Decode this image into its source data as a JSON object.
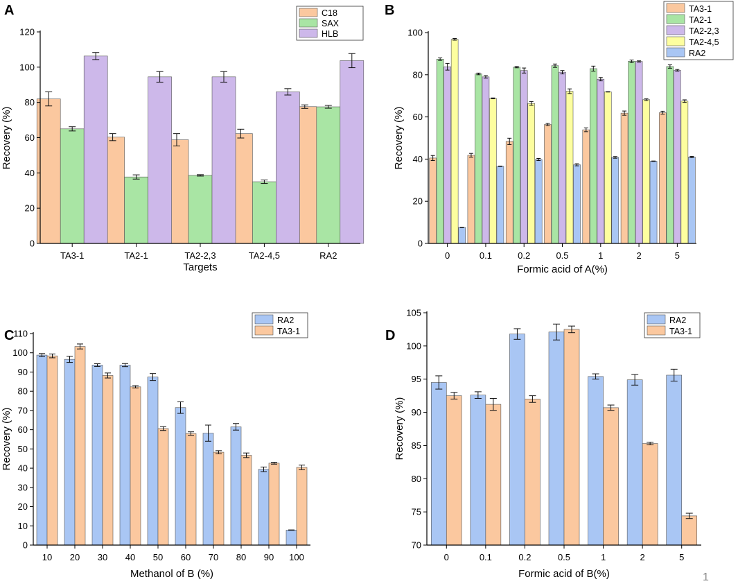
{
  "page_number": "1",
  "colors": {
    "C18": "#fbc89f",
    "SAX": "#a9e5a4",
    "HLB": "#cdb8ea",
    "TA3-1": "#fbc89f",
    "TA2-1": "#a9e5a4",
    "TA2-2,3": "#cdb8ea",
    "TA2-4,5": "#fdfe9f",
    "RA2": "#a9c6f4"
  },
  "chart_data": [
    {
      "panel_label": "A",
      "type": "bar",
      "title": "",
      "xlabel": "Targets",
      "ylabel": "Recovery (%)",
      "ylim": [
        0,
        120
      ],
      "yticks": [
        0,
        20,
        40,
        60,
        80,
        100,
        120
      ],
      "categories": [
        "TA3-1",
        "TA2-1",
        "TA2-2,3",
        "TA2-4,5",
        "RA2"
      ],
      "legend_position": "top-right",
      "series": [
        {
          "name": "C18",
          "values": [
            82,
            60.3,
            58.8,
            62.3,
            77.6
          ],
          "errors": [
            4,
            2,
            3.5,
            2.5,
            1
          ]
        },
        {
          "name": "SAX",
          "values": [
            65,
            37.7,
            38.6,
            35,
            77.5
          ],
          "errors": [
            1.2,
            1.2,
            0.4,
            1,
            0.8
          ]
        },
        {
          "name": "HLB",
          "values": [
            106.3,
            94.5,
            94.5,
            86,
            103.7
          ],
          "errors": [
            2,
            3,
            3,
            1.8,
            4
          ]
        }
      ]
    },
    {
      "panel_label": "B",
      "type": "bar",
      "title": "",
      "xlabel": "Formic acid of A(%)",
      "ylabel": "Recovery (%)",
      "ylim": [
        0,
        100
      ],
      "yticks": [
        0,
        20,
        40,
        60,
        80,
        100
      ],
      "categories": [
        "0",
        "0.1",
        "0.2",
        "0.5",
        "1",
        "2",
        "5"
      ],
      "legend_position": "top-right",
      "series": [
        {
          "name": "TA3-1",
          "values": [
            40.5,
            41.8,
            48.4,
            56.4,
            53.9,
            61.8,
            62
          ],
          "errors": [
            1.2,
            0.9,
            1.5,
            0.5,
            0.9,
            1,
            0.7
          ]
        },
        {
          "name": "TA2-1",
          "values": [
            87.4,
            80.4,
            83.6,
            84.3,
            82.9,
            86.4,
            83.9
          ],
          "errors": [
            0.6,
            0.4,
            0.3,
            0.8,
            1.2,
            0.6,
            0.8
          ]
        },
        {
          "name": "TA2-2,3",
          "values": [
            83.8,
            79,
            82,
            81.2,
            77.9,
            86.3,
            82.1
          ],
          "errors": [
            1.6,
            0.6,
            1.2,
            0.8,
            0.8,
            0.3,
            0.4
          ]
        },
        {
          "name": "TA2-4,5",
          "values": [
            96.8,
            68.8,
            66.4,
            72.2,
            71.9,
            68.2,
            67.5
          ],
          "errors": [
            0.4,
            0.2,
            0.9,
            1.1,
            0.1,
            0.4,
            0.6
          ]
        },
        {
          "name": "RA2",
          "values": [
            7.6,
            36.6,
            39.8,
            37.3,
            40.8,
            39,
            41
          ],
          "errors": [
            0.1,
            0.1,
            0.5,
            0.5,
            0.4,
            0.1,
            0.3
          ]
        }
      ]
    },
    {
      "panel_label": "C",
      "type": "bar",
      "title": "",
      "xlabel": "Methanol of B (%)",
      "ylabel": "Recovery (%)",
      "ylim": [
        0,
        110
      ],
      "yticks": [
        0,
        10,
        20,
        30,
        40,
        50,
        60,
        70,
        80,
        90,
        100,
        110
      ],
      "categories": [
        "10",
        "20",
        "30",
        "40",
        "50",
        "60",
        "70",
        "80",
        "90",
        "100"
      ],
      "legend_position": "top-right",
      "series": [
        {
          "name": "RA2",
          "values": [
            98.8,
            96.6,
            93.6,
            93.6,
            87.4,
            71.5,
            58.2,
            61.5,
            39.4,
            7.8
          ],
          "errors": [
            0.8,
            1.6,
            0.7,
            0.8,
            1.8,
            3,
            4.2,
            1.7,
            1.2,
            0.1
          ]
        },
        {
          "name": "TA3-1",
          "values": [
            98.4,
            103.3,
            88.2,
            82.3,
            60.6,
            58,
            48.3,
            46.7,
            42.6,
            40.4
          ],
          "errors": [
            1,
            1.3,
            1.3,
            0.6,
            1,
            0.9,
            0.8,
            1.2,
            0.5,
            1.2
          ]
        }
      ]
    },
    {
      "panel_label": "D",
      "type": "bar",
      "title": "",
      "xlabel": "Formic acid of B(%)",
      "ylabel": "Recovery (%)",
      "ylim": [
        70,
        105
      ],
      "yticks": [
        70,
        75,
        80,
        85,
        90,
        95,
        100,
        105
      ],
      "categories": [
        "0",
        "0.1",
        "0.2",
        "0.5",
        "1",
        "2",
        "5"
      ],
      "legend_position": "top-right",
      "series": [
        {
          "name": "RA2",
          "values": [
            94.5,
            92.6,
            101.8,
            102.1,
            95.4,
            94.9,
            95.6
          ],
          "errors": [
            1,
            0.5,
            0.8,
            1.2,
            0.4,
            0.8,
            0.9
          ]
        },
        {
          "name": "TA3-1",
          "values": [
            92.5,
            91.2,
            92,
            102.5,
            90.7,
            85.3,
            74.4
          ],
          "errors": [
            0.5,
            0.9,
            0.5,
            0.5,
            0.4,
            0.2,
            0.4
          ]
        }
      ]
    }
  ]
}
